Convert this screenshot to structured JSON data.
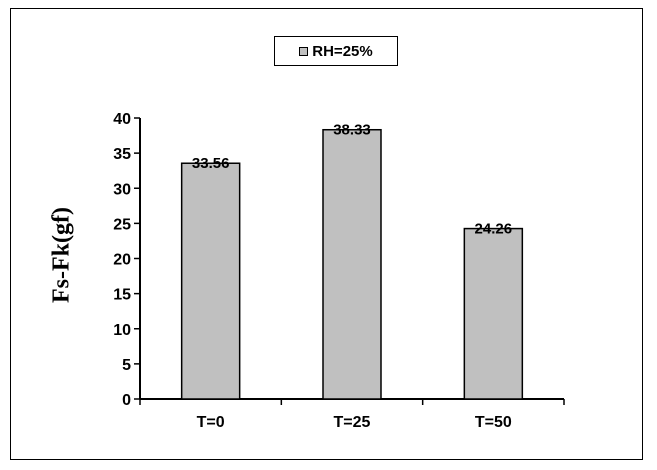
{
  "chart_data": {
    "type": "bar",
    "categories": [
      "T=0",
      "T=25",
      "T=50"
    ],
    "series": [
      {
        "name": "RH=25%",
        "values": [
          33.56,
          38.33,
          24.26
        ],
        "color": "#c0c0c0"
      }
    ],
    "data_labels": [
      "33.56",
      "38.33",
      "24.26"
    ],
    "xlabel": "",
    "ylabel": "Fs-Fk(gf)",
    "ylim": [
      0,
      40
    ],
    "yticks": [
      0,
      5,
      10,
      15,
      20,
      25,
      30,
      35,
      40
    ],
    "grid": false,
    "legend_position": "top-center",
    "bar_edge_color": "#000000"
  }
}
